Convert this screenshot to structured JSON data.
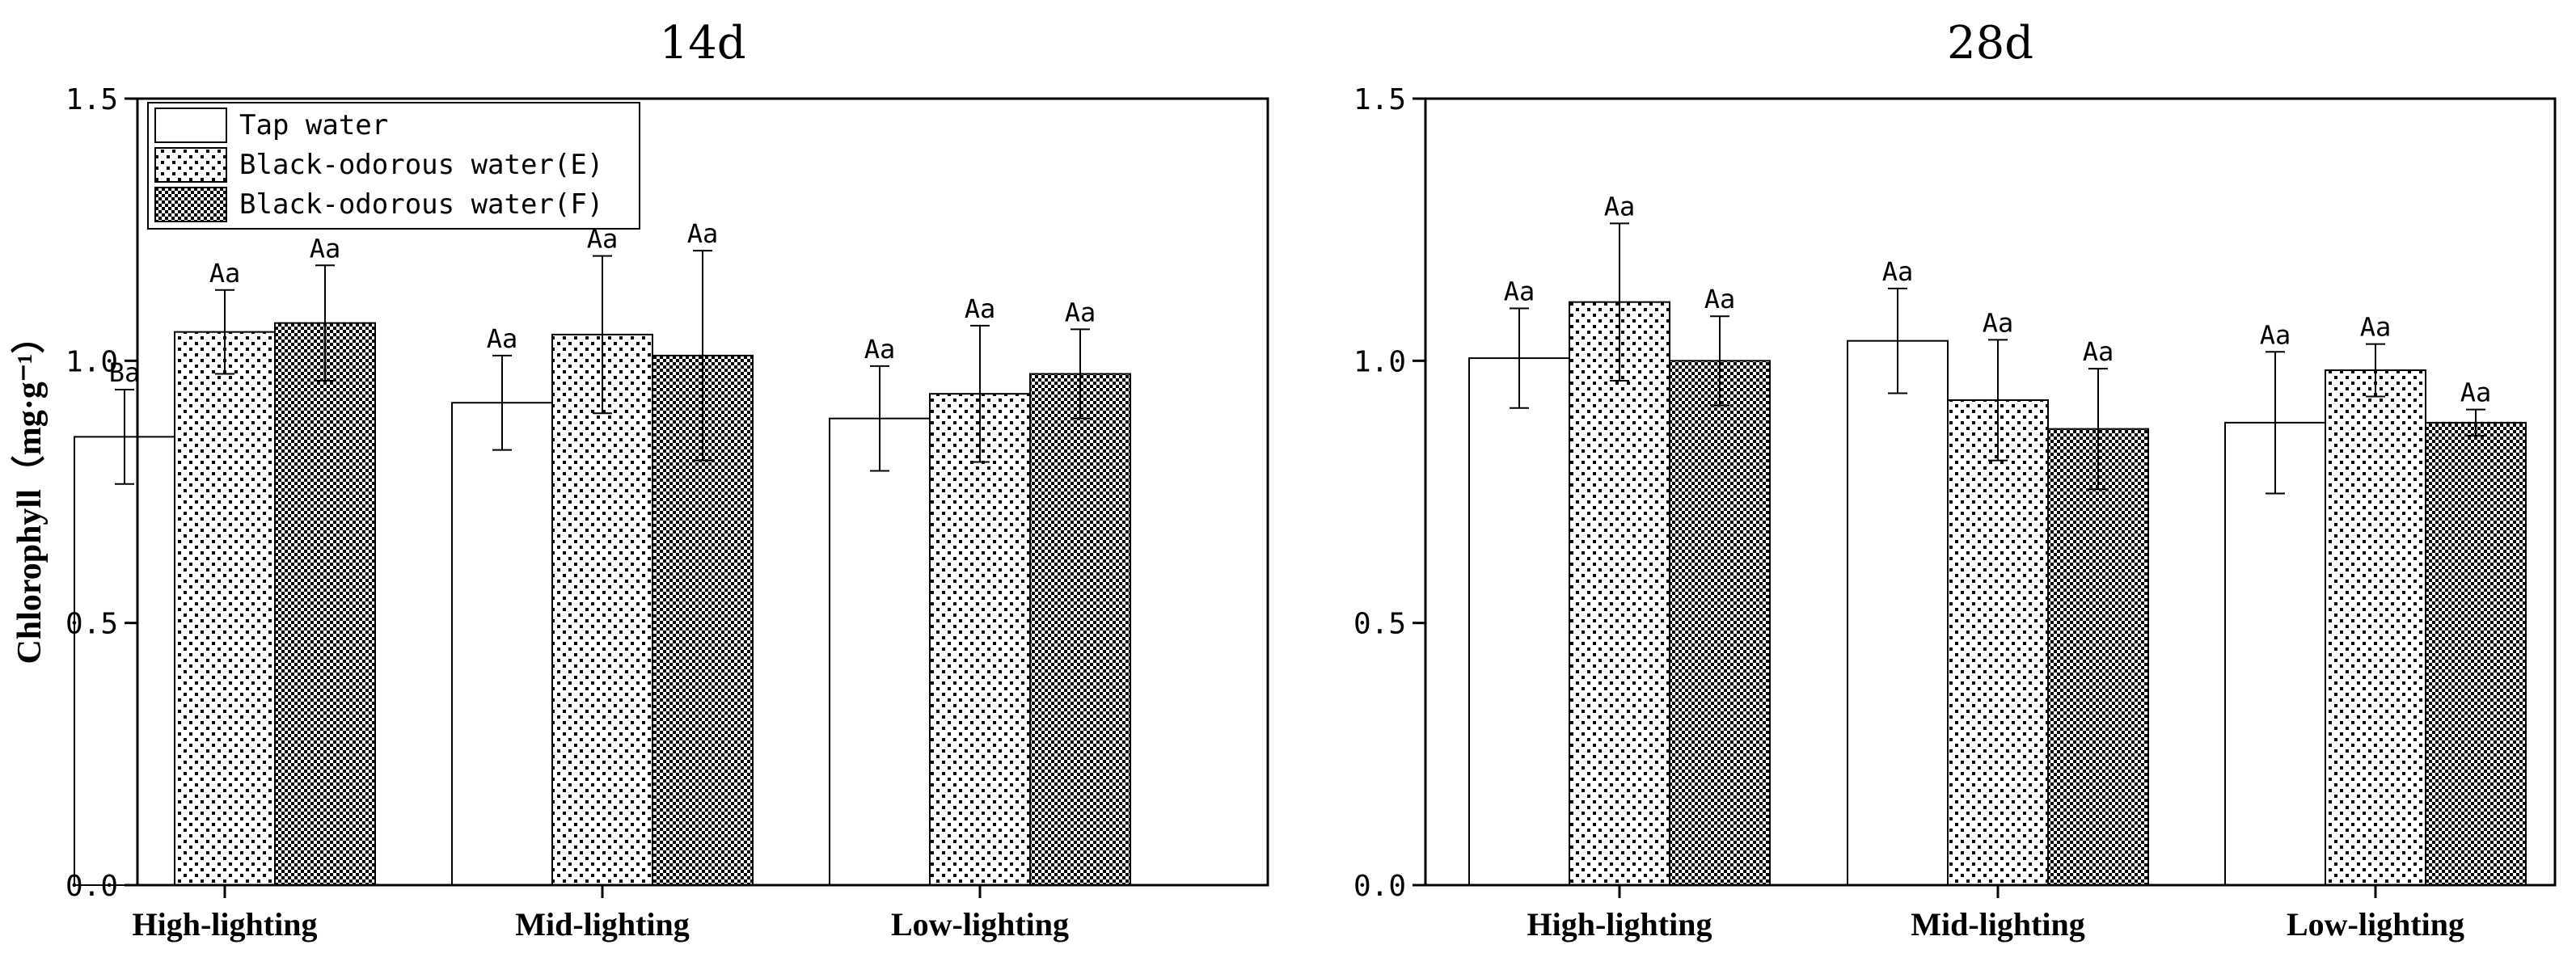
{
  "chart_data": [
    {
      "type": "bar",
      "title": "14d",
      "ylabel": "Chlorophyll（mg·g⁻¹）",
      "xlabel": "",
      "ylim": [
        0,
        1.5
      ],
      "yticks": [
        "0.0",
        "0.5",
        "1.0",
        "1.5"
      ],
      "categories": [
        "High-lighting",
        "Mid-lighting",
        "Low-lighting"
      ],
      "series": [
        {
          "name": "Tap water",
          "pattern": "white",
          "values": [
            0.855,
            0.92,
            0.89
          ],
          "errors": [
            0.09,
            0.09,
            0.1
          ],
          "labels": [
            "Ba",
            "Aa",
            "Aa"
          ]
        },
        {
          "name": "Black-odorous water(E)",
          "pattern": "dots",
          "values": [
            1.055,
            1.05,
            0.937
          ],
          "errors": [
            0.08,
            0.15,
            0.13
          ],
          "labels": [
            "Aa",
            "Aa",
            "Aa"
          ]
        },
        {
          "name": "Black-odorous water(F)",
          "pattern": "checker",
          "values": [
            1.072,
            1.01,
            0.975
          ],
          "errors": [
            0.11,
            0.2,
            0.085
          ],
          "labels": [
            "Aa",
            "Aa",
            "Aa"
          ]
        }
      ],
      "legend": {
        "position": "top-left",
        "entries": [
          "Tap water",
          "Black-odorous water(E)",
          "Black-odorous water(F)"
        ]
      }
    },
    {
      "type": "bar",
      "title": "28d",
      "ylabel": "",
      "xlabel": "",
      "ylim": [
        0,
        1.5
      ],
      "yticks": [
        "0.0",
        "0.5",
        "1.0",
        "1.5"
      ],
      "categories": [
        "High-lighting",
        "Mid-lighting",
        "Low-lighting"
      ],
      "series": [
        {
          "name": "Tap water",
          "pattern": "white",
          "values": [
            1.005,
            1.038,
            0.882
          ],
          "errors": [
            0.095,
            0.1,
            0.135
          ],
          "labels": [
            "Aa",
            "Aa",
            "Aa"
          ]
        },
        {
          "name": "Black-odorous water(E)",
          "pattern": "dots",
          "values": [
            1.112,
            0.925,
            0.982
          ],
          "errors": [
            0.15,
            0.115,
            0.05
          ],
          "labels": [
            "Aa",
            "Aa",
            "Aa"
          ]
        },
        {
          "name": "Black-odorous water(F)",
          "pattern": "checker",
          "values": [
            1.0,
            0.87,
            0.882
          ],
          "errors": [
            0.085,
            0.115,
            0.025
          ],
          "labels": [
            "Aa",
            "Aa",
            "Aa"
          ]
        }
      ]
    }
  ]
}
